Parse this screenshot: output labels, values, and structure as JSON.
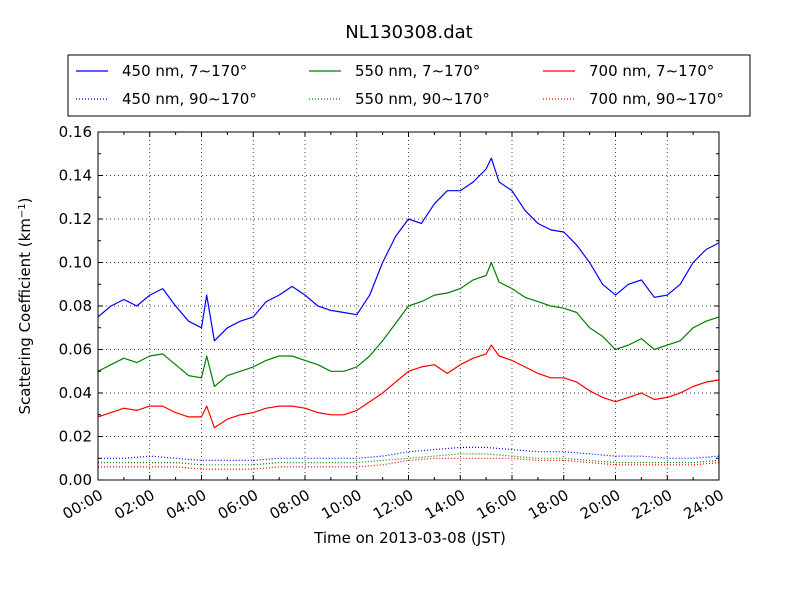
{
  "chart_data": {
    "type": "line",
    "title": "NL130308.dat",
    "xlabel": "Time on 2013-03-08 (JST)",
    "ylabel": "Scattering Coefficient (km",
    "ylabel_sup": "−1",
    "ylabel_close": ")",
    "xlim": [
      0,
      24
    ],
    "ylim": [
      0,
      0.16
    ],
    "x_ticks": [
      0,
      2,
      4,
      6,
      8,
      10,
      12,
      14,
      16,
      18,
      20,
      22,
      24
    ],
    "x_tick_labels": [
      "00:00",
      "02:00",
      "04:00",
      "06:00",
      "08:00",
      "10:00",
      "12:00",
      "14:00",
      "16:00",
      "18:00",
      "20:00",
      "22:00",
      "24:00"
    ],
    "y_ticks": [
      0.0,
      0.02,
      0.04,
      0.06,
      0.08,
      0.1,
      0.12,
      0.14,
      0.16
    ],
    "y_tick_labels": [
      "0.00",
      "0.02",
      "0.04",
      "0.06",
      "0.08",
      "0.10",
      "0.12",
      "0.14",
      "0.16"
    ],
    "grid": true,
    "legend_position": "top",
    "series": [
      {
        "name": "450 nm, 7∼170°",
        "color": "#0000ff",
        "style": "solid",
        "x": [
          0,
          0.5,
          1,
          1.5,
          2,
          2.5,
          3,
          3.5,
          4,
          4.2,
          4.5,
          5,
          5.5,
          6,
          6.5,
          7,
          7.5,
          8,
          8.5,
          9,
          9.5,
          10,
          10.5,
          11,
          11.5,
          12,
          12.5,
          13,
          13.5,
          14,
          14.5,
          15,
          15.2,
          15.5,
          16,
          16.5,
          17,
          17.5,
          18,
          18.5,
          19,
          19.5,
          20,
          20.5,
          21,
          21.5,
          22,
          22.5,
          23,
          23.5,
          24
        ],
        "values": [
          0.075,
          0.08,
          0.083,
          0.08,
          0.085,
          0.088,
          0.08,
          0.073,
          0.07,
          0.085,
          0.064,
          0.07,
          0.073,
          0.075,
          0.082,
          0.085,
          0.089,
          0.085,
          0.08,
          0.078,
          0.077,
          0.076,
          0.085,
          0.1,
          0.112,
          0.12,
          0.118,
          0.127,
          0.133,
          0.133,
          0.137,
          0.143,
          0.148,
          0.137,
          0.133,
          0.124,
          0.118,
          0.115,
          0.114,
          0.108,
          0.1,
          0.09,
          0.085,
          0.09,
          0.092,
          0.084,
          0.085,
          0.09,
          0.1,
          0.106,
          0.109
        ]
      },
      {
        "name": "550 nm, 7∼170°",
        "color": "#008000",
        "style": "solid",
        "x": [
          0,
          0.5,
          1,
          1.5,
          2,
          2.5,
          3,
          3.5,
          4,
          4.2,
          4.5,
          5,
          5.5,
          6,
          6.5,
          7,
          7.5,
          8,
          8.5,
          9,
          9.5,
          10,
          10.5,
          11,
          11.5,
          12,
          12.5,
          13,
          13.5,
          14,
          14.5,
          15,
          15.2,
          15.5,
          16,
          16.5,
          17,
          17.5,
          18,
          18.5,
          19,
          19.5,
          20,
          20.5,
          21,
          21.5,
          22,
          22.5,
          23,
          23.5,
          24
        ],
        "values": [
          0.05,
          0.053,
          0.056,
          0.054,
          0.057,
          0.058,
          0.053,
          0.048,
          0.047,
          0.057,
          0.043,
          0.048,
          0.05,
          0.052,
          0.055,
          0.057,
          0.057,
          0.055,
          0.053,
          0.05,
          0.05,
          0.052,
          0.057,
          0.064,
          0.072,
          0.08,
          0.082,
          0.085,
          0.086,
          0.088,
          0.092,
          0.094,
          0.1,
          0.091,
          0.088,
          0.084,
          0.082,
          0.08,
          0.079,
          0.077,
          0.07,
          0.066,
          0.06,
          0.062,
          0.065,
          0.06,
          0.062,
          0.064,
          0.07,
          0.073,
          0.075
        ]
      },
      {
        "name": "700 nm, 7∼170°",
        "color": "#ff0000",
        "style": "solid",
        "x": [
          0,
          0.5,
          1,
          1.5,
          2,
          2.5,
          3,
          3.5,
          4,
          4.2,
          4.5,
          5,
          5.5,
          6,
          6.5,
          7,
          7.5,
          8,
          8.5,
          9,
          9.5,
          10,
          10.5,
          11,
          11.5,
          12,
          12.5,
          13,
          13.5,
          14,
          14.5,
          15,
          15.2,
          15.5,
          16,
          16.5,
          17,
          17.5,
          18,
          18.5,
          19,
          19.5,
          20,
          20.5,
          21,
          21.5,
          22,
          22.5,
          23,
          23.5,
          24
        ],
        "values": [
          0.029,
          0.031,
          0.033,
          0.032,
          0.034,
          0.034,
          0.031,
          0.029,
          0.029,
          0.034,
          0.024,
          0.028,
          0.03,
          0.031,
          0.033,
          0.034,
          0.034,
          0.033,
          0.031,
          0.03,
          0.03,
          0.032,
          0.036,
          0.04,
          0.045,
          0.05,
          0.052,
          0.053,
          0.049,
          0.053,
          0.056,
          0.058,
          0.062,
          0.057,
          0.055,
          0.052,
          0.049,
          0.047,
          0.047,
          0.045,
          0.041,
          0.038,
          0.036,
          0.038,
          0.04,
          0.037,
          0.038,
          0.04,
          0.043,
          0.045,
          0.046
        ]
      },
      {
        "name": "450 nm, 90∼170°",
        "color": "#0000ff",
        "style": "dotted",
        "x": [
          0,
          1,
          2,
          3,
          4,
          5,
          6,
          7,
          8,
          9,
          10,
          11,
          12,
          13,
          14,
          15,
          16,
          17,
          18,
          19,
          20,
          21,
          22,
          23,
          24
        ],
        "values": [
          0.01,
          0.01,
          0.011,
          0.01,
          0.009,
          0.009,
          0.009,
          0.01,
          0.01,
          0.01,
          0.01,
          0.011,
          0.013,
          0.014,
          0.015,
          0.015,
          0.014,
          0.013,
          0.013,
          0.012,
          0.011,
          0.011,
          0.01,
          0.01,
          0.011
        ]
      },
      {
        "name": "550 nm, 90∼170°",
        "color": "#008000",
        "style": "dotted",
        "x": [
          0,
          1,
          2,
          3,
          4,
          5,
          6,
          7,
          8,
          9,
          10,
          11,
          12,
          13,
          14,
          15,
          16,
          17,
          18,
          19,
          20,
          21,
          22,
          23,
          24
        ],
        "values": [
          0.008,
          0.008,
          0.008,
          0.008,
          0.007,
          0.007,
          0.007,
          0.008,
          0.008,
          0.008,
          0.008,
          0.009,
          0.01,
          0.011,
          0.012,
          0.012,
          0.011,
          0.01,
          0.01,
          0.009,
          0.008,
          0.008,
          0.008,
          0.008,
          0.009
        ]
      },
      {
        "name": "700 nm, 90∼170°",
        "color": "#ff0000",
        "style": "dotted",
        "x": [
          0,
          1,
          2,
          3,
          4,
          5,
          6,
          7,
          8,
          9,
          10,
          11,
          12,
          13,
          14,
          15,
          16,
          17,
          18,
          19,
          20,
          21,
          22,
          23,
          24
        ],
        "values": [
          0.006,
          0.006,
          0.006,
          0.006,
          0.005,
          0.005,
          0.005,
          0.006,
          0.006,
          0.006,
          0.006,
          0.007,
          0.009,
          0.01,
          0.01,
          0.01,
          0.01,
          0.009,
          0.009,
          0.008,
          0.007,
          0.007,
          0.007,
          0.007,
          0.008
        ]
      }
    ]
  }
}
